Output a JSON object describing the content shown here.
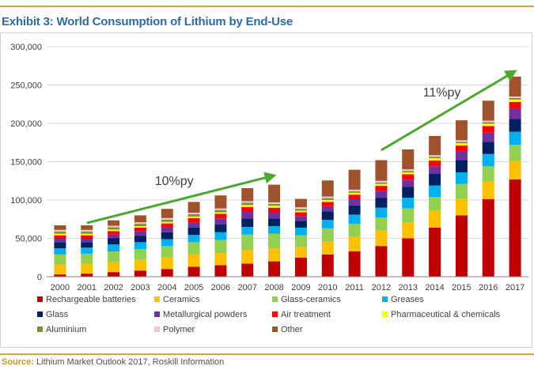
{
  "header": {
    "title": "Exhibit 3: World Consumption of Lithium by End-Use"
  },
  "footer": {
    "source_label": "Source:",
    "source_text": "Lithium Market Outlook 2017, Roskill Information"
  },
  "chart_data": {
    "type": "bar",
    "stacked": true,
    "title": "Exhibit 3: World Consumption of Lithium by End-Use",
    "xlabel": "",
    "ylabel": "",
    "ylim": [
      0,
      300000
    ],
    "yticks": [
      "0",
      "50,000",
      "100,000",
      "150,000",
      "200,000",
      "250,000",
      "300,000"
    ],
    "grid": true,
    "legend_position": "bottom",
    "categories": [
      "2000",
      "2001",
      "2002",
      "2003",
      "2004",
      "2005",
      "2006",
      "2007",
      "2008",
      "2009",
      "2010",
      "2011",
      "2012",
      "2013",
      "2014",
      "2015",
      "2016",
      "2017"
    ],
    "series": [
      {
        "name": "Rechargeable batteries",
        "color": "#c00000",
        "values": [
          3000,
          4000,
          6000,
          8000,
          10000,
          13000,
          15000,
          17000,
          20000,
          25000,
          29000,
          33000,
          40000,
          50000,
          64000,
          80000,
          101000,
          127000
        ]
      },
      {
        "name": "Ceramics",
        "color": "#ffc000",
        "values": [
          13000,
          13000,
          13000,
          14000,
          15000,
          16000,
          16000,
          18000,
          17000,
          14000,
          17000,
          19000,
          20000,
          21000,
          22000,
          22000,
          23000,
          24000
        ]
      },
      {
        "name": "Glass-ceramics",
        "color": "#92d050",
        "values": [
          13000,
          13000,
          14000,
          14000,
          15000,
          16000,
          17000,
          20000,
          19000,
          15000,
          17000,
          17000,
          17000,
          18000,
          18000,
          19000,
          20000,
          21000
        ]
      },
      {
        "name": "Greases",
        "color": "#00b0f0",
        "values": [
          8000,
          8000,
          9000,
          9000,
          9000,
          9500,
          10000,
          10000,
          10000,
          10000,
          11000,
          12000,
          13000,
          14000,
          15000,
          15000,
          16000,
          17000
        ]
      },
      {
        "name": "Glass",
        "color": "#002060",
        "values": [
          8000,
          7000,
          8000,
          8500,
          9000,
          9500,
          10000,
          11000,
          10000,
          9000,
          11000,
          12000,
          13000,
          14000,
          15000,
          16000,
          16000,
          17000
        ]
      },
      {
        "name": "Metallurgical powders",
        "color": "#7030a0",
        "values": [
          5000,
          5000,
          5000,
          6000,
          6500,
          7000,
          8000,
          8500,
          8000,
          6000,
          7000,
          8000,
          9000,
          9500,
          10000,
          11000,
          12000,
          13000
        ]
      },
      {
        "name": "Air treatment",
        "color": "#ff0000",
        "values": [
          4000,
          4000,
          4500,
          4500,
          5000,
          5500,
          6000,
          6500,
          6000,
          5000,
          5500,
          6000,
          6500,
          7000,
          7500,
          8000,
          8500,
          9000
        ]
      },
      {
        "name": "Pharmaceutical & chemicals",
        "color": "#ffff00",
        "values": [
          2000,
          2000,
          2000,
          2000,
          2000,
          2000,
          2000,
          2500,
          2500,
          2000,
          2500,
          2500,
          2500,
          2500,
          3000,
          3000,
          3000,
          3000
        ]
      },
      {
        "name": "Aluminium",
        "color": "#77933c",
        "values": [
          3000,
          3000,
          3000,
          3000,
          3000,
          3000,
          3000,
          3000,
          2500,
          2500,
          2500,
          2000,
          2000,
          2000,
          2000,
          2000,
          2000,
          2000
        ]
      },
      {
        "name": "Polymer",
        "color": "#f2c7d8",
        "values": [
          2000,
          2000,
          2000,
          2000,
          2000,
          2000,
          2000,
          2000,
          2000,
          2000,
          2000,
          2000,
          2000,
          2000,
          2000,
          2000,
          2000,
          2000
        ]
      },
      {
        "name": "Other",
        "color": "#a0522d",
        "values": [
          6000,
          6000,
          7000,
          9000,
          12000,
          14000,
          17000,
          17000,
          23000,
          11000,
          21000,
          26000,
          27000,
          26000,
          25000,
          26000,
          26000,
          26000
        ]
      }
    ],
    "annotations": [
      {
        "text": "10%py",
        "from": {
          "x": "2001",
          "y": 70000
        },
        "to": {
          "x": "2008",
          "y": 132000
        },
        "color": "#4ea72e"
      },
      {
        "text": "11%py",
        "from": {
          "x": "2012",
          "y": 165000
        },
        "to": {
          "x": "2017",
          "y": 268000
        },
        "color": "#4ea72e"
      }
    ]
  }
}
